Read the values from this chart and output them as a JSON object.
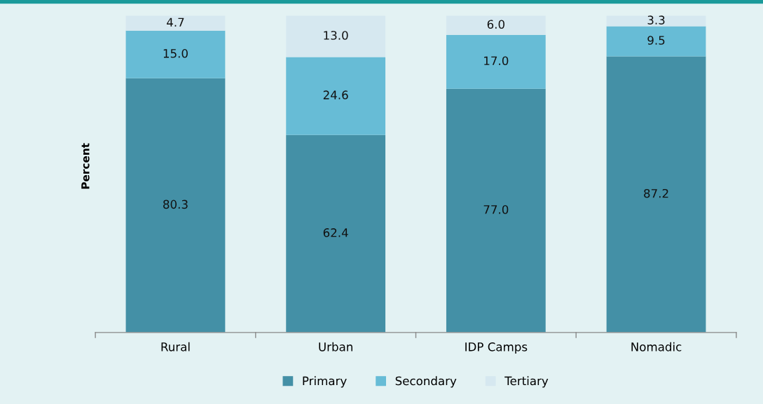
{
  "chart_data": {
    "type": "bar",
    "stacked": true,
    "ylabel": "Percent",
    "categories": [
      "Rural",
      "Urban",
      "IDP Camps",
      "Nomadic"
    ],
    "series": [
      {
        "name": "Primary",
        "color": "#4490a6",
        "values": [
          80.3,
          62.4,
          77.0,
          87.2
        ],
        "value_labels": [
          "80.3",
          "62.4",
          "77.0",
          "87.2"
        ]
      },
      {
        "name": "Secondary",
        "color": "#67bcd6",
        "values": [
          15.0,
          24.6,
          17.0,
          9.5
        ],
        "value_labels": [
          "15.0",
          "24.6",
          "17.0",
          "9.5"
        ]
      },
      {
        "name": "Tertiary",
        "color": "#d6e8f0",
        "values": [
          4.7,
          13.0,
          6.0,
          3.3
        ],
        "value_labels": [
          "4.7",
          "13.0",
          "6.0",
          "3.3"
        ]
      }
    ],
    "ylim": [
      0,
      105
    ],
    "tick_labels": "x",
    "legend": "bottom",
    "grid": false
  }
}
